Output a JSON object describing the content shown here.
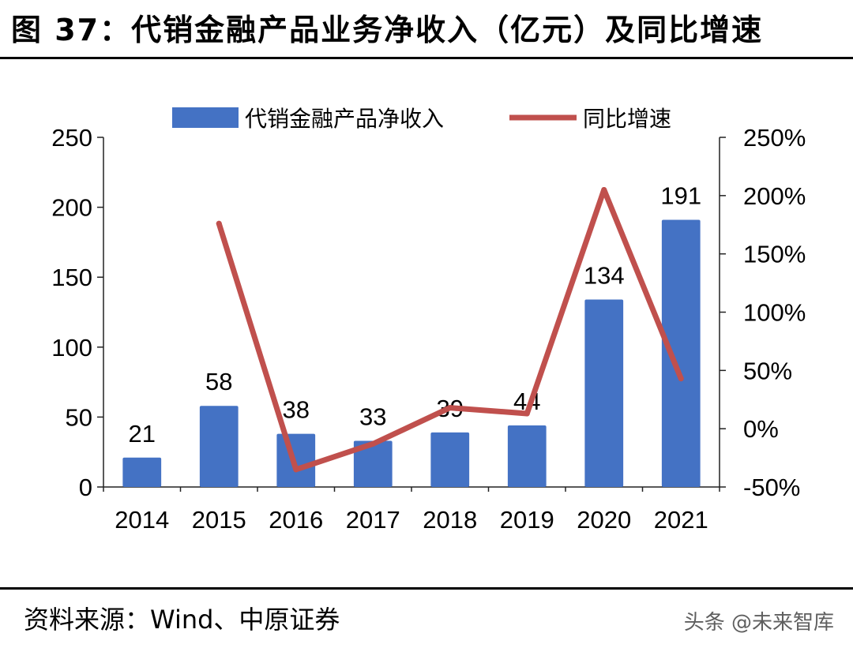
{
  "header": {
    "title": "图 37：代销金融产品业务净收入（亿元）及同比增速"
  },
  "footer": {
    "source": "资料来源：Wind、中原证券",
    "watermark": "头条 @未来智库"
  },
  "colors": {
    "bar": "#4472C4",
    "line": "#C0504D"
  },
  "chart_data": {
    "type": "bar",
    "categories": [
      "2014",
      "2015",
      "2016",
      "2017",
      "2018",
      "2019",
      "2020",
      "2021"
    ],
    "series": [
      {
        "name": "代销金融产品净收入",
        "type": "bar",
        "axis": "left",
        "values": [
          21,
          58,
          38,
          33,
          39,
          44,
          134,
          191
        ],
        "labels": [
          "21",
          "58",
          "38",
          "33",
          "39",
          "44",
          "134",
          "191"
        ]
      },
      {
        "name": "同比增速",
        "type": "line",
        "axis": "right",
        "values": [
          null,
          176,
          -35,
          -13,
          18,
          13,
          205,
          43
        ]
      }
    ],
    "left_axis": {
      "ylim": [
        0,
        250
      ],
      "ticks": [
        0,
        50,
        100,
        150,
        200,
        250
      ],
      "tick_labels": [
        "0",
        "50",
        "100",
        "150",
        "200",
        "250"
      ]
    },
    "right_axis": {
      "ylim": [
        -50,
        250
      ],
      "ticks": [
        -50,
        0,
        50,
        100,
        150,
        200,
        250
      ],
      "tick_labels": [
        "-50%",
        "0%",
        "50%",
        "100%",
        "150%",
        "200%",
        "250%"
      ]
    },
    "legend": {
      "position": "top-center"
    },
    "grid": false
  }
}
